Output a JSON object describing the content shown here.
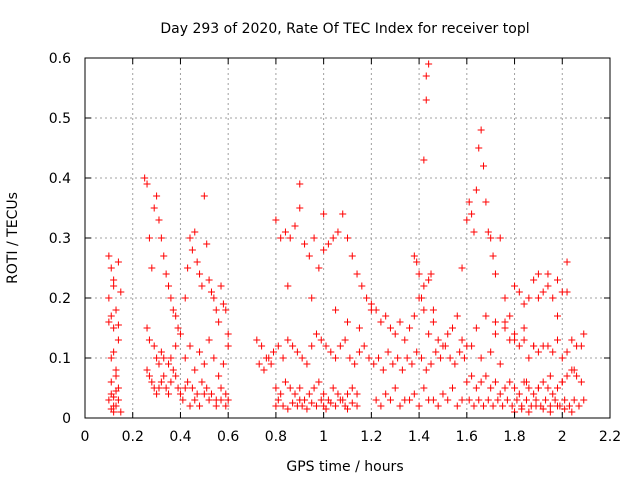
{
  "chart_data": {
    "type": "scatter",
    "title": "Day 293 of 2020, Rate Of TEC Index for receiver topl",
    "xlabel": "GPS time / hours",
    "ylabel": "ROTI / TECUs",
    "xlim": [
      0,
      2.2
    ],
    "ylim": [
      0,
      0.6
    ],
    "xticks": [
      "0",
      "0.2",
      "0.4",
      "0.6",
      "0.8",
      "1",
      "1.2",
      "1.4",
      "1.6",
      "1.8",
      "2",
      "2.2"
    ],
    "yticks": [
      "0",
      "0.1",
      "0.2",
      "0.3",
      "0.4",
      "0.5",
      "0.6"
    ],
    "grid": true,
    "marker": "+",
    "color": "#ff0000",
    "series": [
      {
        "x": [
          0.1,
          0.1,
          0.11,
          0.11,
          0.11,
          0.12,
          0.12,
          0.12,
          0.13,
          0.13,
          0.14,
          0.14,
          0.15,
          0.1,
          0.11,
          0.12,
          0.13,
          0.14,
          0.1,
          0.11,
          0.12,
          0.13,
          0.14,
          0.15,
          0.11,
          0.12,
          0.13,
          0.12,
          0.14,
          0.25,
          0.26,
          0.27,
          0.28,
          0.29,
          0.3,
          0.31,
          0.32,
          0.33,
          0.34,
          0.35,
          0.36,
          0.37,
          0.38,
          0.39,
          0.4,
          0.26,
          0.27,
          0.28,
          0.29,
          0.3,
          0.31,
          0.32,
          0.33,
          0.34,
          0.35,
          0.36,
          0.37,
          0.38,
          0.39,
          0.4,
          0.41,
          0.42,
          0.43,
          0.26,
          0.27,
          0.29,
          0.3,
          0.31,
          0.32,
          0.33,
          0.35,
          0.36,
          0.38,
          0.42,
          0.43,
          0.44,
          0.45,
          0.46,
          0.47,
          0.48,
          0.49,
          0.5,
          0.51,
          0.52,
          0.53,
          0.54,
          0.55,
          0.56,
          0.57,
          0.58,
          0.59,
          0.6,
          0.42,
          0.44,
          0.46,
          0.48,
          0.5,
          0.52,
          0.54,
          0.56,
          0.58,
          0.6,
          0.45,
          0.47,
          0.49,
          0.51,
          0.53,
          0.55,
          0.57,
          0.59,
          0.44,
          0.46,
          0.48,
          0.5,
          0.52,
          0.55,
          0.57,
          0.59,
          0.6,
          0.72,
          0.74,
          0.76,
          0.78,
          0.8,
          0.82,
          0.84,
          0.86,
          0.88,
          0.9,
          0.92,
          0.94,
          0.96,
          0.98,
          1.0,
          1.02,
          1.04,
          1.06,
          1.08,
          1.1,
          1.12,
          1.14,
          1.16,
          1.18,
          1.2,
          0.73,
          0.75,
          0.77,
          0.79,
          0.81,
          0.83,
          0.85,
          0.87,
          0.89,
          0.91,
          0.93,
          0.95,
          0.97,
          0.99,
          1.01,
          1.03,
          1.05,
          1.07,
          1.09,
          1.11,
          1.13,
          1.15,
          1.17,
          1.19,
          0.8,
          0.82,
          0.84,
          0.86,
          0.88,
          0.9,
          0.92,
          0.94,
          0.96,
          0.98,
          1.0,
          1.02,
          1.04,
          1.06,
          1.08,
          1.1,
          1.12,
          1.14,
          0.8,
          0.81,
          0.83,
          0.85,
          0.87,
          0.89,
          0.9,
          0.91,
          0.93,
          0.95,
          0.97,
          0.99,
          1.0,
          1.01,
          1.03,
          1.05,
          1.07,
          1.09,
          1.1,
          1.12,
          1.14,
          0.85,
          0.9,
          0.95,
          1.0,
          1.05,
          1.1,
          1.15,
          1.2,
          1.22,
          1.24,
          1.26,
          1.28,
          1.3,
          1.32,
          1.34,
          1.36,
          1.38,
          1.4,
          1.42,
          1.44,
          1.46,
          1.48,
          1.5,
          1.52,
          1.54,
          1.56,
          1.58,
          1.6,
          1.21,
          1.23,
          1.25,
          1.27,
          1.29,
          1.31,
          1.33,
          1.35,
          1.37,
          1.39,
          1.41,
          1.43,
          1.45,
          1.47,
          1.49,
          1.51,
          1.53,
          1.55,
          1.57,
          1.59,
          1.22,
          1.26,
          1.3,
          1.34,
          1.38,
          1.42,
          1.46,
          1.5,
          1.54,
          1.58,
          1.24,
          1.28,
          1.32,
          1.36,
          1.4,
          1.44,
          1.48,
          1.52,
          1.56,
          1.38,
          1.39,
          1.4,
          1.41,
          1.42,
          1.42,
          1.43,
          1.43,
          1.44,
          1.44,
          1.45,
          1.46,
          1.58,
          1.6,
          1.61,
          1.62,
          1.63,
          1.64,
          1.65,
          1.66,
          1.67,
          1.68,
          1.69,
          1.7,
          1.71,
          1.72,
          1.6,
          1.62,
          1.64,
          1.66,
          1.68,
          1.7,
          1.72,
          1.74,
          1.76,
          1.78,
          1.8,
          1.82,
          1.84,
          1.86,
          1.88,
          1.9,
          1.92,
          1.94,
          1.96,
          1.98,
          2.0,
          2.02,
          2.04,
          2.06,
          2.08,
          1.61,
          1.63,
          1.65,
          1.67,
          1.69,
          1.71,
          1.73,
          1.75,
          1.77,
          1.79,
          1.81,
          1.83,
          1.85,
          1.87,
          1.89,
          1.91,
          1.93,
          1.95,
          1.97,
          1.99,
          2.01,
          2.03,
          2.05,
          2.07,
          2.09,
          1.62,
          1.66,
          1.7,
          1.74,
          1.78,
          1.82,
          1.86,
          1.9,
          1.94,
          1.98,
          2.02,
          2.06,
          2.09,
          1.64,
          1.68,
          1.72,
          1.76,
          1.8,
          1.84,
          1.88,
          1.92,
          1.96,
          2.0,
          2.04,
          2.08,
          1.74,
          1.76,
          1.78,
          1.8,
          1.82,
          1.84,
          1.86,
          1.88,
          1.9,
          1.92,
          1.94,
          1.96,
          1.98,
          2.0,
          2.02,
          1.8,
          1.83,
          1.86,
          1.89,
          1.92,
          1.95,
          1.98,
          2.01,
          2.04,
          2.07,
          1.85,
          1.9,
          1.95,
          2.0,
          2.05,
          1.9,
          1.94,
          1.98,
          2.02,
          1.72,
          1.76,
          1.8,
          1.84,
          1.88
        ],
        "y": [
          0.27,
          0.16,
          0.25,
          0.1,
          0.04,
          0.22,
          0.15,
          0.02,
          0.08,
          0.18,
          0.26,
          0.13,
          0.21,
          0.03,
          0.06,
          0.01,
          0.02,
          0.05,
          0.2,
          0.17,
          0.11,
          0.07,
          0.03,
          0.01,
          0.015,
          0.035,
          0.045,
          0.23,
          0.155,
          0.4,
          0.39,
          0.3,
          0.25,
          0.35,
          0.37,
          0.33,
          0.3,
          0.27,
          0.24,
          0.22,
          0.2,
          0.18,
          0.17,
          0.15,
          0.14,
          0.08,
          0.07,
          0.06,
          0.05,
          0.04,
          0.05,
          0.06,
          0.07,
          0.05,
          0.04,
          0.06,
          0.08,
          0.07,
          0.05,
          0.04,
          0.03,
          0.05,
          0.06,
          0.15,
          0.13,
          0.12,
          0.1,
          0.09,
          0.11,
          0.1,
          0.09,
          0.1,
          0.12,
          0.2,
          0.25,
          0.3,
          0.28,
          0.31,
          0.26,
          0.24,
          0.22,
          0.37,
          0.29,
          0.23,
          0.21,
          0.2,
          0.18,
          0.16,
          0.22,
          0.19,
          0.18,
          0.14,
          0.1,
          0.12,
          0.08,
          0.11,
          0.09,
          0.13,
          0.1,
          0.07,
          0.09,
          0.12,
          0.05,
          0.04,
          0.06,
          0.05,
          0.04,
          0.03,
          0.05,
          0.04,
          0.02,
          0.03,
          0.02,
          0.04,
          0.03,
          0.02,
          0.03,
          0.02,
          0.03,
          0.13,
          0.12,
          0.1,
          0.09,
          0.33,
          0.3,
          0.31,
          0.3,
          0.32,
          0.35,
          0.29,
          0.27,
          0.3,
          0.25,
          0.28,
          0.29,
          0.3,
          0.31,
          0.34,
          0.3,
          0.27,
          0.24,
          0.22,
          0.2,
          0.18,
          0.09,
          0.08,
          0.1,
          0.11,
          0.12,
          0.1,
          0.13,
          0.12,
          0.11,
          0.1,
          0.09,
          0.12,
          0.14,
          0.13,
          0.12,
          0.11,
          0.1,
          0.12,
          0.13,
          0.1,
          0.09,
          0.11,
          0.12,
          0.1,
          0.05,
          0.04,
          0.06,
          0.05,
          0.04,
          0.05,
          0.03,
          0.04,
          0.05,
          0.06,
          0.04,
          0.03,
          0.05,
          0.04,
          0.03,
          0.04,
          0.05,
          0.04,
          0.02,
          0.03,
          0.02,
          0.015,
          0.025,
          0.02,
          0.03,
          0.02,
          0.015,
          0.025,
          0.02,
          0.03,
          0.02,
          0.015,
          0.025,
          0.02,
          0.03,
          0.02,
          0.015,
          0.025,
          0.02,
          0.22,
          0.39,
          0.2,
          0.34,
          0.18,
          0.16,
          0.15,
          0.19,
          0.18,
          0.16,
          0.17,
          0.15,
          0.14,
          0.16,
          0.13,
          0.15,
          0.17,
          0.2,
          0.18,
          0.14,
          0.16,
          0.13,
          0.12,
          0.14,
          0.15,
          0.17,
          0.13,
          0.12,
          0.09,
          0.1,
          0.08,
          0.11,
          0.09,
          0.1,
          0.08,
          0.1,
          0.09,
          0.11,
          0.1,
          0.08,
          0.09,
          0.11,
          0.1,
          0.12,
          0.1,
          0.09,
          0.11,
          0.1,
          0.03,
          0.04,
          0.05,
          0.03,
          0.04,
          0.05,
          0.03,
          0.04,
          0.05,
          0.03,
          0.02,
          0.03,
          0.02,
          0.03,
          0.02,
          0.03,
          0.02,
          0.03,
          0.02,
          0.27,
          0.26,
          0.24,
          0.2,
          0.22,
          0.43,
          0.57,
          0.53,
          0.59,
          0.23,
          0.24,
          0.18,
          0.25,
          0.33,
          0.36,
          0.34,
          0.31,
          0.38,
          0.45,
          0.48,
          0.42,
          0.36,
          0.31,
          0.3,
          0.27,
          0.24,
          0.06,
          0.07,
          0.05,
          0.06,
          0.07,
          0.05,
          0.06,
          0.04,
          0.05,
          0.06,
          0.05,
          0.04,
          0.06,
          0.05,
          0.04,
          0.05,
          0.06,
          0.05,
          0.04,
          0.05,
          0.06,
          0.07,
          0.08,
          0.07,
          0.06,
          0.03,
          0.02,
          0.03,
          0.02,
          0.03,
          0.02,
          0.03,
          0.02,
          0.03,
          0.02,
          0.03,
          0.02,
          0.03,
          0.02,
          0.03,
          0.02,
          0.03,
          0.02,
          0.03,
          0.02,
          0.03,
          0.02,
          0.03,
          0.02,
          0.03,
          0.12,
          0.1,
          0.11,
          0.09,
          0.13,
          0.12,
          0.1,
          0.11,
          0.12,
          0.13,
          0.11,
          0.12,
          0.14,
          0.15,
          0.17,
          0.16,
          0.15,
          0.14,
          0.13,
          0.12,
          0.12,
          0.11,
          0.1,
          0.13,
          0.12,
          0.3,
          0.2,
          0.17,
          0.22,
          0.21,
          0.19,
          0.2,
          0.23,
          0.24,
          0.21,
          0.22,
          0.2,
          0.23,
          0.21,
          0.26,
          0.01,
          0.015,
          0.01,
          0.02,
          0.015,
          0.01,
          0.02,
          0.015,
          0.01,
          0.02,
          0.06,
          0.05,
          0.07,
          0.06,
          0.08,
          0.2,
          0.24,
          0.17,
          0.21,
          0.14,
          0.16,
          0.13,
          0.15,
          0.12
        ]
      }
    ]
  }
}
